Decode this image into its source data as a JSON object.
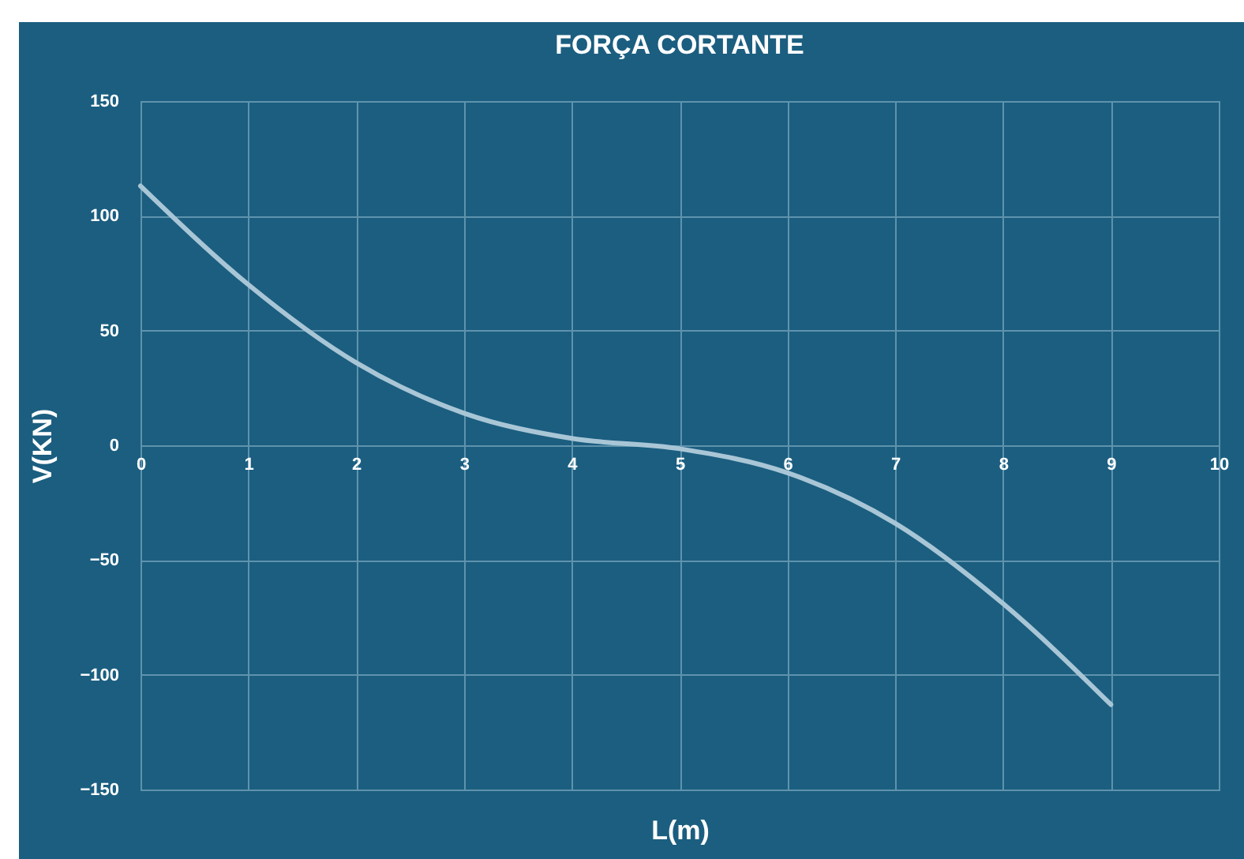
{
  "chart_data": {
    "type": "line",
    "title": "FORÇA CORTANTE",
    "xlabel": "L(m)",
    "ylabel": "V(KN)",
    "x": [
      0,
      1,
      2,
      3,
      4,
      5,
      6,
      7,
      8,
      9
    ],
    "series": [
      {
        "color": "#a9c6d6",
        "values": [
          113,
          70,
          36,
          14,
          3,
          -1.5,
          -12,
          -34,
          -69,
          -113
        ]
      }
    ],
    "xlim": [
      0,
      10
    ],
    "xticks": [
      0,
      1,
      2,
      3,
      4,
      5,
      6,
      7,
      8,
      9,
      10
    ],
    "ylim": [
      -150,
      150
    ],
    "yticks": [
      -150,
      -100,
      -50,
      0,
      50,
      100,
      150
    ],
    "grid": true,
    "marker": "none",
    "line_style": "solid"
  }
}
